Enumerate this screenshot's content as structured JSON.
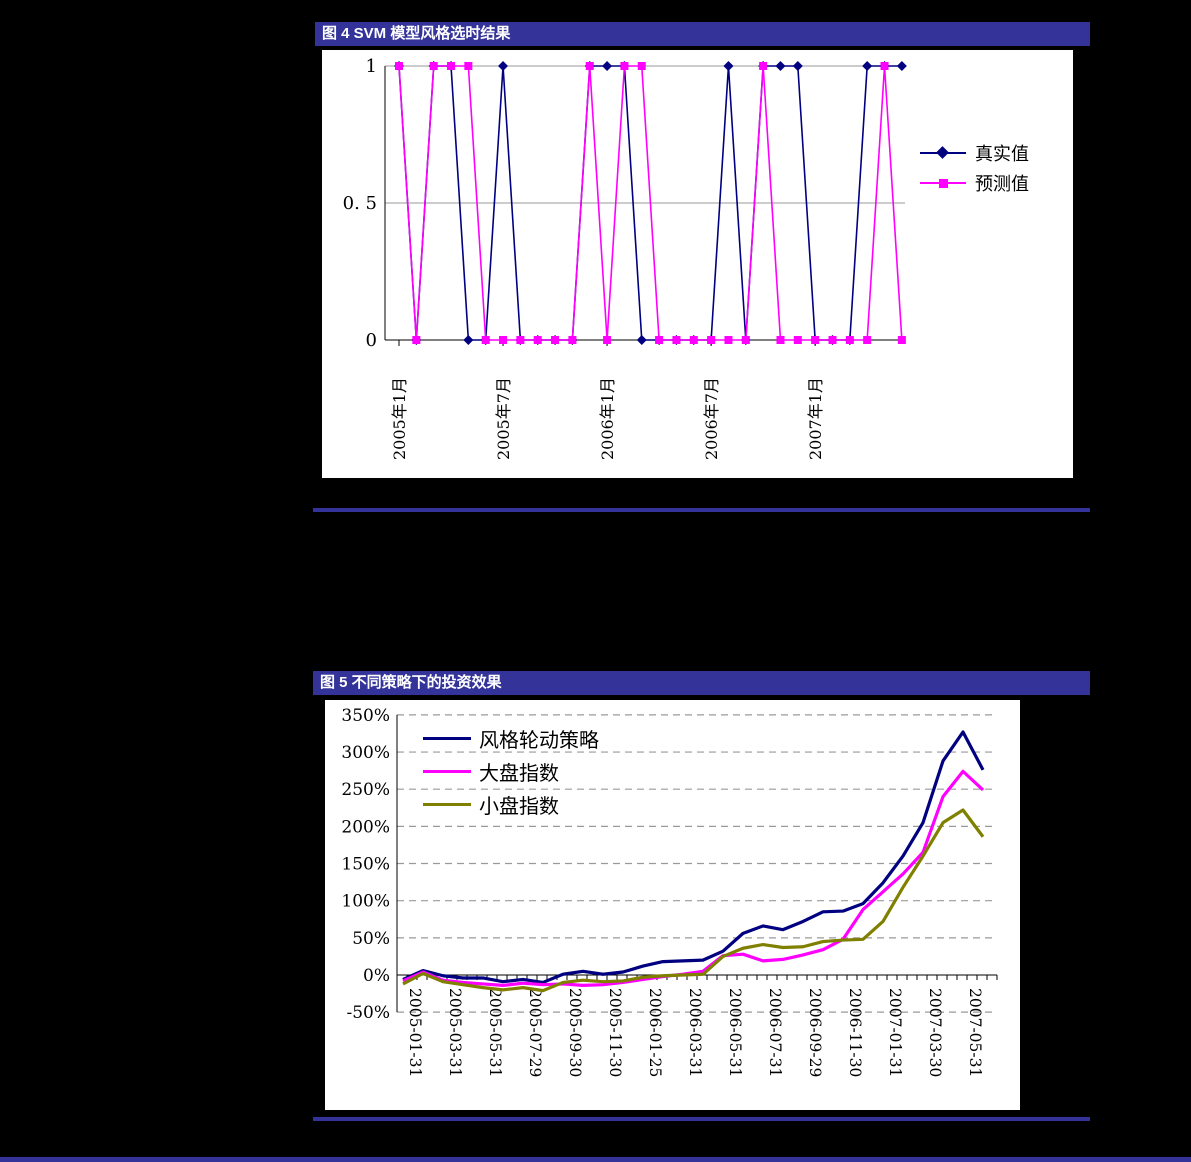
{
  "page": {
    "background": "#000000",
    "accent_blue": "#333399",
    "grid_color": "#9a9a9a",
    "axis_color": "#000000"
  },
  "chart_data": [
    {
      "type": "line",
      "title": "图 4 SVM 模型风格选时结果",
      "ylim": [
        0,
        1
      ],
      "y_ticks": [
        1,
        0.5,
        0
      ],
      "y_tick_labels": [
        "1",
        "0. 5",
        "0"
      ],
      "x_tick_labels": [
        "2005年1月",
        "2005年7月",
        "2006年1月",
        "2006年7月",
        "2007年1月"
      ],
      "x_months": [
        "2005-01",
        "2005-02",
        "2005-03",
        "2005-04",
        "2005-05",
        "2005-06",
        "2005-07",
        "2005-08",
        "2005-09",
        "2005-10",
        "2005-11",
        "2005-12",
        "2006-01",
        "2006-02",
        "2006-03",
        "2006-04",
        "2006-05",
        "2006-06",
        "2006-07",
        "2006-08",
        "2006-09",
        "2006-10",
        "2006-11",
        "2006-12",
        "2007-01",
        "2007-02",
        "2007-03",
        "2007-04",
        "2007-05",
        "2007-06"
      ],
      "grid": "horizontal solid",
      "legend_position": "right",
      "series": [
        {
          "name": "真实值",
          "color": "#000080",
          "marker": "diamond",
          "values": [
            1,
            0,
            1,
            1,
            0,
            0,
            1,
            0,
            0,
            0,
            0,
            1,
            1,
            1,
            0,
            0,
            0,
            0,
            0,
            1,
            0,
            1,
            1,
            1,
            0,
            0,
            0,
            1,
            1,
            1
          ]
        },
        {
          "name": "预测值",
          "color": "#FF00FF",
          "marker": "square",
          "values": [
            1,
            0,
            1,
            1,
            1,
            0,
            0,
            0,
            0,
            0,
            0,
            1,
            0,
            1,
            1,
            0,
            0,
            0,
            0,
            0,
            0,
            1,
            0,
            0,
            0,
            0,
            0,
            0,
            1,
            0
          ]
        }
      ]
    },
    {
      "type": "line",
      "title": "图 5 不同策略下的投资效果",
      "ylabel_unit": "%",
      "ylim": [
        -50,
        350
      ],
      "y_ticks": [
        350,
        300,
        250,
        200,
        150,
        100,
        50,
        0,
        -50
      ],
      "y_tick_labels": [
        "350%",
        "300%",
        "250%",
        "200%",
        "150%",
        "100%",
        "50%",
        "0%",
        "-50%"
      ],
      "x_tick_labels": [
        "2005-01-31",
        "2005-03-31",
        "2005-05-31",
        "2005-07-29",
        "2005-09-30",
        "2005-11-30",
        "2006-01-25",
        "2006-03-31",
        "2006-05-31",
        "2006-07-31",
        "2006-09-29",
        "2006-11-30",
        "2007-01-31",
        "2007-03-30",
        "2007-05-31"
      ],
      "x_months": [
        "2005-01",
        "2005-02",
        "2005-03",
        "2005-04",
        "2005-05",
        "2005-06",
        "2005-07",
        "2005-08",
        "2005-09",
        "2005-10",
        "2005-11",
        "2005-12",
        "2006-01",
        "2006-02",
        "2006-03",
        "2006-04",
        "2006-05",
        "2006-06",
        "2006-07",
        "2006-08",
        "2006-09",
        "2006-10",
        "2006-11",
        "2006-12",
        "2007-01",
        "2007-02",
        "2007-03",
        "2007-04",
        "2007-05",
        "2007-06"
      ],
      "grid": "horizontal dashed",
      "legend_position": "top-left",
      "series": [
        {
          "name": "风格轮动策略",
          "color": "#000080",
          "marker": "none",
          "values": [
            -6,
            6,
            -1,
            -4,
            -4,
            -9,
            -6,
            -10,
            1,
            5,
            1,
            4,
            12,
            18,
            19,
            20,
            32,
            56,
            66,
            61,
            72,
            85,
            86,
            96,
            124,
            160,
            205,
            288,
            327,
            276
          ]
        },
        {
          "name": "大盘指数",
          "color": "#FF00FF",
          "marker": "none",
          "values": [
            -8,
            4,
            -7,
            -10,
            -12,
            -14,
            -11,
            -13,
            -12,
            -14,
            -13,
            -10,
            -6,
            -2,
            1,
            5,
            26,
            28,
            19,
            21,
            27,
            34,
            48,
            88,
            112,
            136,
            165,
            240,
            274,
            249
          ]
        },
        {
          "name": "小盘指数",
          "color": "#808000",
          "marker": "none",
          "values": [
            -12,
            2,
            -9,
            -13,
            -17,
            -20,
            -17,
            -21,
            -10,
            -7,
            -9,
            -8,
            -3,
            -1,
            0,
            1,
            25,
            36,
            41,
            37,
            38,
            45,
            47,
            48,
            72,
            118,
            160,
            205,
            222,
            186
          ]
        }
      ]
    }
  ]
}
